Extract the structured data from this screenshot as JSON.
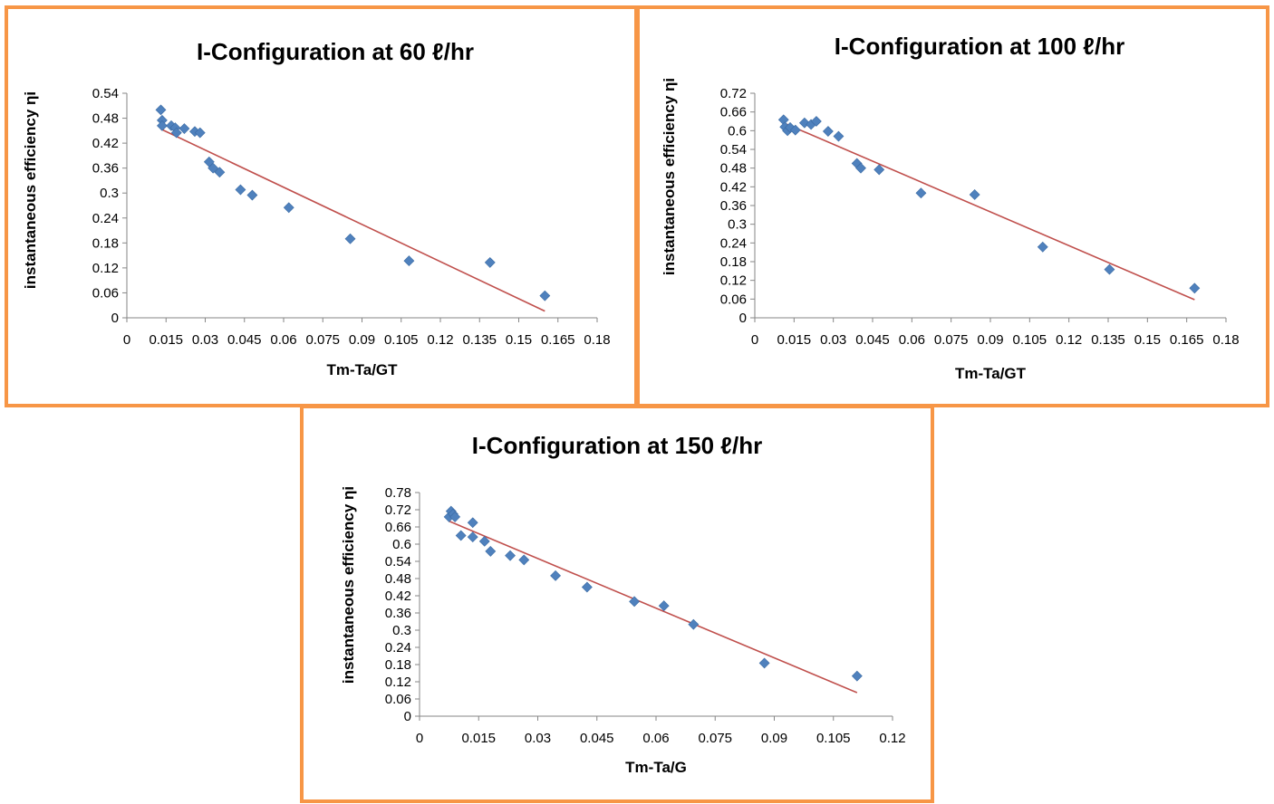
{
  "chart_data": [
    {
      "type": "scatter",
      "title": "I-Configuration at 60 ℓ/hr",
      "xlabel": "Tm-Ta/GT",
      "ylabel": "instantaneous efficiency ηi",
      "xlim": [
        0,
        0.18
      ],
      "ylim": [
        0,
        0.54
      ],
      "xticks": [
        "0",
        "0.015",
        "0.03",
        "0.045",
        "0.06",
        "0.075",
        "0.09",
        "0.105",
        "0.12",
        "0.135",
        "0.15",
        "0.165",
        "0.18"
      ],
      "yticks": [
        "0",
        "0.06",
        "0.12",
        "0.18",
        "0.24",
        "0.3",
        "0.36",
        "0.42",
        "0.48",
        "0.54"
      ],
      "grid": false,
      "legend": "none",
      "marker_color": "#4f81bd",
      "trend_color": "#c0504d",
      "points": [
        [
          0.013,
          0.5
        ],
        [
          0.0135,
          0.475
        ],
        [
          0.0135,
          0.462
        ],
        [
          0.017,
          0.462
        ],
        [
          0.0185,
          0.457
        ],
        [
          0.019,
          0.445
        ],
        [
          0.022,
          0.455
        ],
        [
          0.026,
          0.448
        ],
        [
          0.028,
          0.445
        ],
        [
          0.0315,
          0.375
        ],
        [
          0.033,
          0.36
        ],
        [
          0.0355,
          0.35
        ],
        [
          0.0435,
          0.308
        ],
        [
          0.048,
          0.295
        ],
        [
          0.062,
          0.265
        ],
        [
          0.0855,
          0.19
        ],
        [
          0.108,
          0.137
        ],
        [
          0.139,
          0.133
        ],
        [
          0.16,
          0.053
        ]
      ],
      "trendline": [
        [
          0.013,
          0.454
        ],
        [
          0.16,
          0.016
        ]
      ]
    },
    {
      "type": "scatter",
      "title": "I-Configuration at 100 ℓ/hr",
      "xlabel": "Tm-Ta/GT",
      "ylabel": "instantaneous efficiency ηi",
      "xlim": [
        0,
        0.18
      ],
      "ylim": [
        0,
        0.72
      ],
      "xticks": [
        "0",
        "0.015",
        "0.03",
        "0.045",
        "0.06",
        "0.075",
        "0.09",
        "0.105",
        "0.12",
        "0.135",
        "0.15",
        "0.165",
        "0.18"
      ],
      "yticks": [
        "0",
        "0.06",
        "0.12",
        "0.18",
        "0.24",
        "0.3",
        "0.36",
        "0.42",
        "0.48",
        "0.54",
        "0.6",
        "0.66",
        "0.72"
      ],
      "grid": false,
      "legend": "none",
      "marker_color": "#4f81bd",
      "trend_color": "#c0504d",
      "points": [
        [
          0.011,
          0.635
        ],
        [
          0.0115,
          0.612
        ],
        [
          0.0125,
          0.6
        ],
        [
          0.0135,
          0.61
        ],
        [
          0.0155,
          0.602
        ],
        [
          0.019,
          0.625
        ],
        [
          0.0215,
          0.62
        ],
        [
          0.0235,
          0.63
        ],
        [
          0.028,
          0.598
        ],
        [
          0.032,
          0.582
        ],
        [
          0.039,
          0.495
        ],
        [
          0.0405,
          0.48
        ],
        [
          0.0475,
          0.475
        ],
        [
          0.0635,
          0.4
        ],
        [
          0.084,
          0.395
        ],
        [
          0.11,
          0.227
        ],
        [
          0.1355,
          0.155
        ],
        [
          0.168,
          0.095
        ]
      ],
      "trendline": [
        [
          0.011,
          0.625
        ],
        [
          0.168,
          0.058
        ]
      ]
    },
    {
      "type": "scatter",
      "title": "I-Configuration at 150 ℓ/hr",
      "xlabel": "Tm-Ta/G",
      "ylabel": "instantaneous efficiency ηi",
      "xlim": [
        0,
        0.12
      ],
      "ylim": [
        0,
        0.78
      ],
      "xticks": [
        "0",
        "0.015",
        "0.03",
        "0.045",
        "0.06",
        "0.075",
        "0.09",
        "0.105",
        "0.12"
      ],
      "yticks": [
        "0",
        "0.06",
        "0.12",
        "0.18",
        "0.24",
        "0.3",
        "0.36",
        "0.42",
        "0.48",
        "0.54",
        "0.6",
        "0.66",
        "0.72",
        "0.78"
      ],
      "grid": false,
      "legend": "none",
      "marker_color": "#4f81bd",
      "trend_color": "#c0504d",
      "points": [
        [
          0.0075,
          0.695
        ],
        [
          0.008,
          0.715
        ],
        [
          0.0085,
          0.705
        ],
        [
          0.009,
          0.695
        ],
        [
          0.0105,
          0.63
        ],
        [
          0.0135,
          0.675
        ],
        [
          0.0135,
          0.625
        ],
        [
          0.0165,
          0.61
        ],
        [
          0.018,
          0.575
        ],
        [
          0.023,
          0.56
        ],
        [
          0.0265,
          0.545
        ],
        [
          0.0345,
          0.49
        ],
        [
          0.0425,
          0.45
        ],
        [
          0.0545,
          0.4
        ],
        [
          0.062,
          0.385
        ],
        [
          0.0695,
          0.32
        ],
        [
          0.0875,
          0.185
        ],
        [
          0.111,
          0.14
        ]
      ],
      "trendline": [
        [
          0.0075,
          0.68
        ],
        [
          0.111,
          0.082
        ]
      ]
    }
  ]
}
